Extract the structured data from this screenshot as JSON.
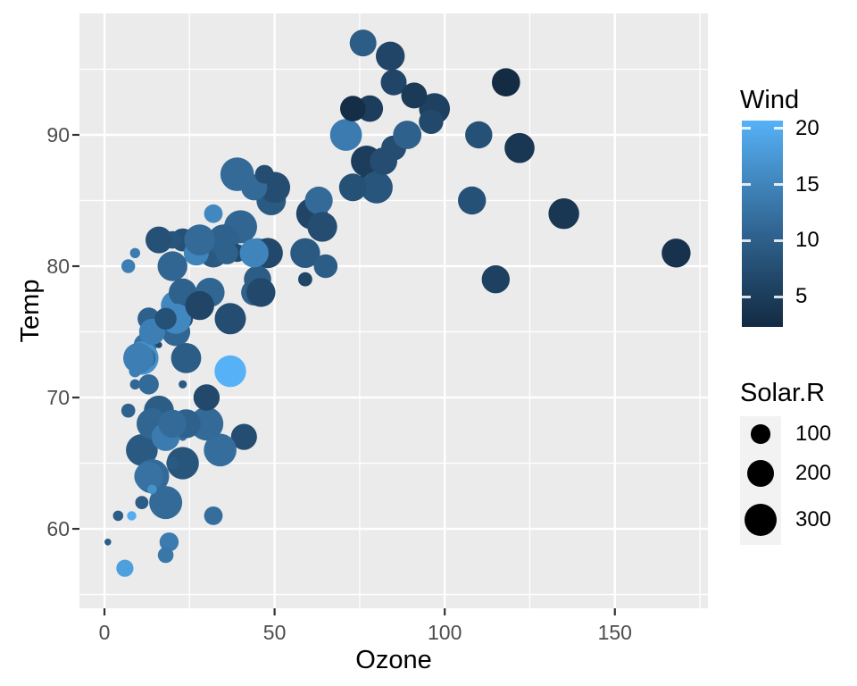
{
  "figure": {
    "background": "#FFFFFF",
    "panel": {
      "fill": "#EBEBEB",
      "grid_color": "#FFFFFF",
      "tick_mark_color": "#333333"
    },
    "text_colors": {
      "tick_label": "#4D4D4D",
      "title": "#000000"
    },
    "legends": {
      "wind": {
        "title": "Wind",
        "tick_labels": [
          "20",
          "15",
          "10",
          "5"
        ],
        "tick_values": [
          20,
          15,
          10,
          5
        ],
        "limits": [
          2.3,
          20.7
        ],
        "low_color": "#132B43",
        "high_color": "#56B1F7"
      },
      "solar": {
        "title": "Solar.R",
        "entry_labels": [
          "100",
          "200",
          "300"
        ],
        "entry_values": [
          100,
          200,
          300
        ],
        "key_fill": "#F2F2F2",
        "glyph_color": "#000000"
      }
    }
  },
  "chart_data": {
    "type": "scatter",
    "title": "",
    "xlabel": "Ozone",
    "ylabel": "Temp",
    "xlim": [
      -7.35,
      177.35
    ],
    "ylim": [
      53.95,
      99.25
    ],
    "x_ticks": [
      0,
      50,
      100,
      150
    ],
    "x_minor_ticks": [
      25,
      75,
      125,
      175
    ],
    "y_ticks": [
      60,
      70,
      80,
      90
    ],
    "y_minor_ticks": [
      55,
      65,
      75,
      85,
      95
    ],
    "grid": true,
    "legend_position": "right",
    "color_scale": {
      "aesthetic": "Wind",
      "low": "#132B43",
      "high": "#56B1F7",
      "limits": [
        2.3,
        20.7
      ]
    },
    "size_scale": {
      "aesthetic": "Solar.R",
      "limits": [
        7,
        334
      ],
      "range_mm": [
        1,
        6
      ]
    },
    "columns": [
      "Ozone",
      "Solar.R",
      "Wind",
      "Temp"
    ],
    "points": [
      [
        41,
        190,
        7.4,
        67
      ],
      [
        36,
        118,
        8,
        72
      ],
      [
        12,
        149,
        12.6,
        74
      ],
      [
        18,
        313,
        11.5,
        62
      ],
      [
        23,
        299,
        8.6,
        65
      ],
      [
        19,
        99,
        13.8,
        59
      ],
      [
        8,
        19,
        20.1,
        61
      ],
      [
        16,
        256,
        9.7,
        69
      ],
      [
        11,
        290,
        9.2,
        66
      ],
      [
        14,
        274,
        10.9,
        68
      ],
      [
        18,
        65,
        13.2,
        58
      ],
      [
        14,
        334,
        11.5,
        64
      ],
      [
        34,
        307,
        12,
        66
      ],
      [
        6,
        78,
        18.4,
        57
      ],
      [
        30,
        322,
        11.5,
        68
      ],
      [
        11,
        44,
        9.7,
        62
      ],
      [
        1,
        8,
        9.7,
        59
      ],
      [
        11,
        320,
        16.6,
        73
      ],
      [
        4,
        25,
        9.7,
        61
      ],
      [
        32,
        92,
        12,
        61
      ],
      [
        23,
        13,
        12,
        67
      ],
      [
        45,
        252,
        14.9,
        81
      ],
      [
        115,
        223,
        5.7,
        79
      ],
      [
        37,
        279,
        7.4,
        76
      ],
      [
        29,
        127,
        9.7,
        82
      ],
      [
        71,
        291,
        13.8,
        90
      ],
      [
        39,
        323,
        11.5,
        87
      ],
      [
        23,
        148,
        8,
        82
      ],
      [
        21,
        191,
        14.9,
        77
      ],
      [
        37,
        284,
        20.7,
        72
      ],
      [
        20,
        37,
        9.2,
        65
      ],
      [
        12,
        120,
        11.5,
        73
      ],
      [
        13,
        137,
        10.3,
        76
      ],
      [
        135,
        269,
        4.1,
        84
      ],
      [
        49,
        248,
        9.2,
        85
      ],
      [
        32,
        236,
        9.2,
        81
      ],
      [
        64,
        175,
        4.6,
        83
      ],
      [
        40,
        314,
        10.9,
        83
      ],
      [
        77,
        276,
        5.1,
        88
      ],
      [
        97,
        267,
        6.3,
        92
      ],
      [
        97,
        272,
        5.7,
        92
      ],
      [
        85,
        175,
        7.4,
        89
      ],
      [
        10,
        264,
        14.3,
        73
      ],
      [
        27,
        175,
        14.9,
        81
      ],
      [
        7,
        48,
        14.3,
        80
      ],
      [
        48,
        260,
        6.9,
        81
      ],
      [
        35,
        274,
        10.3,
        82
      ],
      [
        61,
        285,
        6.3,
        84
      ],
      [
        79,
        187,
        5.1,
        87
      ],
      [
        63,
        220,
        11.5,
        85
      ],
      [
        16,
        7,
        6.9,
        74
      ],
      [
        80,
        294,
        8.6,
        86
      ],
      [
        108,
        223,
        8,
        85
      ],
      [
        20,
        81,
        8.6,
        82
      ],
      [
        52,
        82,
        12,
        86
      ],
      [
        82,
        213,
        7.4,
        88
      ],
      [
        50,
        275,
        7.4,
        86
      ],
      [
        64,
        253,
        7.4,
        83
      ],
      [
        59,
        254,
        9.2,
        81
      ],
      [
        39,
        83,
        6.9,
        81
      ],
      [
        9,
        24,
        13.8,
        81
      ],
      [
        16,
        77,
        7.4,
        82
      ],
      [
        122,
        255,
        4,
        89
      ],
      [
        89,
        229,
        10.3,
        90
      ],
      [
        110,
        207,
        8,
        90
      ],
      [
        44,
        192,
        11.5,
        86
      ],
      [
        28,
        273,
        11.5,
        82
      ],
      [
        65,
        157,
        9.7,
        80
      ],
      [
        22,
        71,
        10.3,
        77
      ],
      [
        59,
        51,
        6.3,
        79
      ],
      [
        23,
        115,
        7.4,
        76
      ],
      [
        31,
        244,
        10.9,
        78
      ],
      [
        44,
        190,
        10.3,
        78
      ],
      [
        21,
        259,
        15.5,
        77
      ],
      [
        9,
        36,
        14.3,
        72
      ],
      [
        45,
        212,
        9.7,
        79
      ],
      [
        168,
        238,
        3.4,
        81
      ],
      [
        73,
        215,
        8,
        86
      ],
      [
        76,
        203,
        9.7,
        97
      ],
      [
        118,
        225,
        2.3,
        94
      ],
      [
        84,
        237,
        6.3,
        96
      ],
      [
        85,
        188,
        6.3,
        94
      ],
      [
        96,
        167,
        6.9,
        91
      ],
      [
        78,
        197,
        5.1,
        92
      ],
      [
        73,
        183,
        2.8,
        92
      ],
      [
        91,
        189,
        4.6,
        93
      ],
      [
        47,
        95,
        7.4,
        87
      ],
      [
        32,
        92,
        15.5,
        84
      ],
      [
        20,
        252,
        10.9,
        80
      ],
      [
        23,
        220,
        10.3,
        78
      ],
      [
        21,
        230,
        10.9,
        75
      ],
      [
        24,
        259,
        9.7,
        73
      ],
      [
        44,
        236,
        14.9,
        81
      ],
      [
        21,
        259,
        15.5,
        76
      ],
      [
        28,
        238,
        6.3,
        77
      ],
      [
        9,
        24,
        10.9,
        71
      ],
      [
        13,
        112,
        11.5,
        71
      ],
      [
        46,
        237,
        6.9,
        78
      ],
      [
        18,
        224,
        13.8,
        67
      ],
      [
        13,
        27,
        10.3,
        76
      ],
      [
        24,
        238,
        10.3,
        68
      ],
      [
        16,
        201,
        8,
        82
      ],
      [
        13,
        238,
        12.6,
        64
      ],
      [
        23,
        14,
        9.2,
        71
      ],
      [
        36,
        139,
        10.3,
        81
      ],
      [
        7,
        49,
        10.3,
        69
      ],
      [
        14,
        20,
        16.6,
        63
      ],
      [
        30,
        193,
        6.9,
        70
      ],
      [
        14,
        191,
        14.3,
        75
      ],
      [
        18,
        131,
        8,
        76
      ],
      [
        20,
        223,
        11.5,
        68
      ]
    ]
  }
}
